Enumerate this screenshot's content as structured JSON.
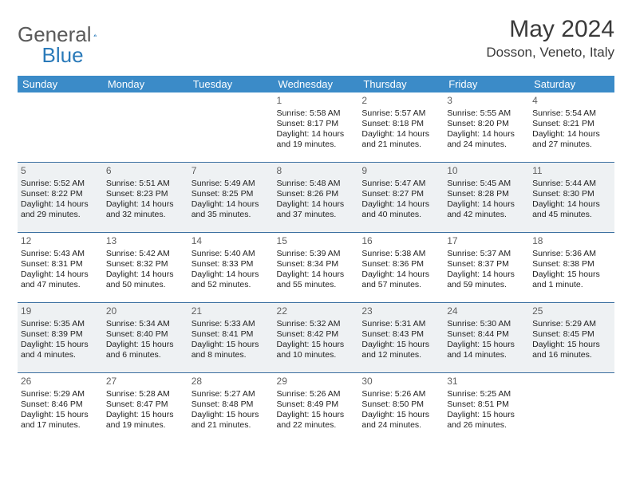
{
  "logo": {
    "text1": "General",
    "text2": "Blue"
  },
  "title": "May 2024",
  "location": "Dosson, Veneto, Italy",
  "style": {
    "header_bg": "#3b8bc8",
    "header_fg": "#ffffff",
    "row_border": "#3b6fa0",
    "alt_bg": "#eef1f3",
    "page_bg": "#ffffff",
    "text_color": "#222222",
    "daynum_color": "#606060",
    "title_color": "#3a3a3a",
    "logo_gray": "#5a5a5a",
    "logo_blue": "#2a7ab9",
    "font": "Arial",
    "title_fontsize_pt": 22,
    "location_fontsize_pt": 13,
    "header_fontsize_pt": 10,
    "cell_fontsize_pt": 8
  },
  "weekdays": [
    "Sunday",
    "Monday",
    "Tuesday",
    "Wednesday",
    "Thursday",
    "Friday",
    "Saturday"
  ],
  "weeks": [
    {
      "alt": false,
      "days": [
        {
          "num": "",
          "sunrise": "",
          "sunset": "",
          "daylight": ""
        },
        {
          "num": "",
          "sunrise": "",
          "sunset": "",
          "daylight": ""
        },
        {
          "num": "",
          "sunrise": "",
          "sunset": "",
          "daylight": ""
        },
        {
          "num": "1",
          "sunrise": "Sunrise: 5:58 AM",
          "sunset": "Sunset: 8:17 PM",
          "daylight": "Daylight: 14 hours and 19 minutes."
        },
        {
          "num": "2",
          "sunrise": "Sunrise: 5:57 AM",
          "sunset": "Sunset: 8:18 PM",
          "daylight": "Daylight: 14 hours and 21 minutes."
        },
        {
          "num": "3",
          "sunrise": "Sunrise: 5:55 AM",
          "sunset": "Sunset: 8:20 PM",
          "daylight": "Daylight: 14 hours and 24 minutes."
        },
        {
          "num": "4",
          "sunrise": "Sunrise: 5:54 AM",
          "sunset": "Sunset: 8:21 PM",
          "daylight": "Daylight: 14 hours and 27 minutes."
        }
      ]
    },
    {
      "alt": true,
      "days": [
        {
          "num": "5",
          "sunrise": "Sunrise: 5:52 AM",
          "sunset": "Sunset: 8:22 PM",
          "daylight": "Daylight: 14 hours and 29 minutes."
        },
        {
          "num": "6",
          "sunrise": "Sunrise: 5:51 AM",
          "sunset": "Sunset: 8:23 PM",
          "daylight": "Daylight: 14 hours and 32 minutes."
        },
        {
          "num": "7",
          "sunrise": "Sunrise: 5:49 AM",
          "sunset": "Sunset: 8:25 PM",
          "daylight": "Daylight: 14 hours and 35 minutes."
        },
        {
          "num": "8",
          "sunrise": "Sunrise: 5:48 AM",
          "sunset": "Sunset: 8:26 PM",
          "daylight": "Daylight: 14 hours and 37 minutes."
        },
        {
          "num": "9",
          "sunrise": "Sunrise: 5:47 AM",
          "sunset": "Sunset: 8:27 PM",
          "daylight": "Daylight: 14 hours and 40 minutes."
        },
        {
          "num": "10",
          "sunrise": "Sunrise: 5:45 AM",
          "sunset": "Sunset: 8:28 PM",
          "daylight": "Daylight: 14 hours and 42 minutes."
        },
        {
          "num": "11",
          "sunrise": "Sunrise: 5:44 AM",
          "sunset": "Sunset: 8:30 PM",
          "daylight": "Daylight: 14 hours and 45 minutes."
        }
      ]
    },
    {
      "alt": false,
      "days": [
        {
          "num": "12",
          "sunrise": "Sunrise: 5:43 AM",
          "sunset": "Sunset: 8:31 PM",
          "daylight": "Daylight: 14 hours and 47 minutes."
        },
        {
          "num": "13",
          "sunrise": "Sunrise: 5:42 AM",
          "sunset": "Sunset: 8:32 PM",
          "daylight": "Daylight: 14 hours and 50 minutes."
        },
        {
          "num": "14",
          "sunrise": "Sunrise: 5:40 AM",
          "sunset": "Sunset: 8:33 PM",
          "daylight": "Daylight: 14 hours and 52 minutes."
        },
        {
          "num": "15",
          "sunrise": "Sunrise: 5:39 AM",
          "sunset": "Sunset: 8:34 PM",
          "daylight": "Daylight: 14 hours and 55 minutes."
        },
        {
          "num": "16",
          "sunrise": "Sunrise: 5:38 AM",
          "sunset": "Sunset: 8:36 PM",
          "daylight": "Daylight: 14 hours and 57 minutes."
        },
        {
          "num": "17",
          "sunrise": "Sunrise: 5:37 AM",
          "sunset": "Sunset: 8:37 PM",
          "daylight": "Daylight: 14 hours and 59 minutes."
        },
        {
          "num": "18",
          "sunrise": "Sunrise: 5:36 AM",
          "sunset": "Sunset: 8:38 PM",
          "daylight": "Daylight: 15 hours and 1 minute."
        }
      ]
    },
    {
      "alt": true,
      "days": [
        {
          "num": "19",
          "sunrise": "Sunrise: 5:35 AM",
          "sunset": "Sunset: 8:39 PM",
          "daylight": "Daylight: 15 hours and 4 minutes."
        },
        {
          "num": "20",
          "sunrise": "Sunrise: 5:34 AM",
          "sunset": "Sunset: 8:40 PM",
          "daylight": "Daylight: 15 hours and 6 minutes."
        },
        {
          "num": "21",
          "sunrise": "Sunrise: 5:33 AM",
          "sunset": "Sunset: 8:41 PM",
          "daylight": "Daylight: 15 hours and 8 minutes."
        },
        {
          "num": "22",
          "sunrise": "Sunrise: 5:32 AM",
          "sunset": "Sunset: 8:42 PM",
          "daylight": "Daylight: 15 hours and 10 minutes."
        },
        {
          "num": "23",
          "sunrise": "Sunrise: 5:31 AM",
          "sunset": "Sunset: 8:43 PM",
          "daylight": "Daylight: 15 hours and 12 minutes."
        },
        {
          "num": "24",
          "sunrise": "Sunrise: 5:30 AM",
          "sunset": "Sunset: 8:44 PM",
          "daylight": "Daylight: 15 hours and 14 minutes."
        },
        {
          "num": "25",
          "sunrise": "Sunrise: 5:29 AM",
          "sunset": "Sunset: 8:45 PM",
          "daylight": "Daylight: 15 hours and 16 minutes."
        }
      ]
    },
    {
      "alt": false,
      "days": [
        {
          "num": "26",
          "sunrise": "Sunrise: 5:29 AM",
          "sunset": "Sunset: 8:46 PM",
          "daylight": "Daylight: 15 hours and 17 minutes."
        },
        {
          "num": "27",
          "sunrise": "Sunrise: 5:28 AM",
          "sunset": "Sunset: 8:47 PM",
          "daylight": "Daylight: 15 hours and 19 minutes."
        },
        {
          "num": "28",
          "sunrise": "Sunrise: 5:27 AM",
          "sunset": "Sunset: 8:48 PM",
          "daylight": "Daylight: 15 hours and 21 minutes."
        },
        {
          "num": "29",
          "sunrise": "Sunrise: 5:26 AM",
          "sunset": "Sunset: 8:49 PM",
          "daylight": "Daylight: 15 hours and 22 minutes."
        },
        {
          "num": "30",
          "sunrise": "Sunrise: 5:26 AM",
          "sunset": "Sunset: 8:50 PM",
          "daylight": "Daylight: 15 hours and 24 minutes."
        },
        {
          "num": "31",
          "sunrise": "Sunrise: 5:25 AM",
          "sunset": "Sunset: 8:51 PM",
          "daylight": "Daylight: 15 hours and 26 minutes."
        },
        {
          "num": "",
          "sunrise": "",
          "sunset": "",
          "daylight": ""
        }
      ]
    }
  ]
}
